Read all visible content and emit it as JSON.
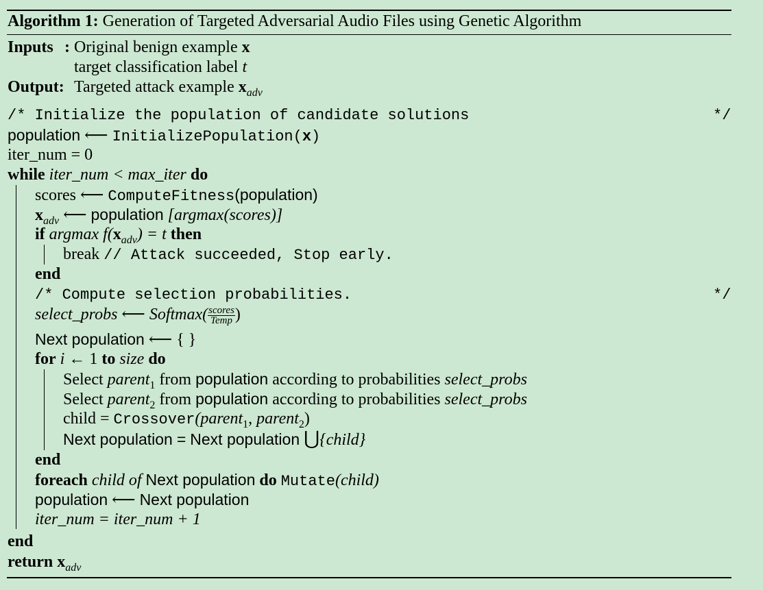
{
  "title": {
    "label": "Algorithm 1:",
    "text": "Generation of Targeted Adversarial Audio Files using Genetic Algorithm"
  },
  "io": {
    "inputs_label": "Inputs",
    "input1": "Original benign example",
    "input1_var": "x",
    "input2": "target classification label",
    "input2_var": "t",
    "output_label": "Output",
    "output1": "Targeted attack example",
    "output1_var": "x",
    "output1_sub": "adv"
  },
  "code": {
    "c1_open": "/* Initialize the population of candidate solutions",
    "c1_close": "*/",
    "population": "population",
    "arrow": "⟵",
    "init_func": "InitializePopulation(",
    "x": "x",
    "close_paren": ")",
    "iter_init": "iter_num = 0",
    "while_kw": "while",
    "while_cond": "iter_num < max_iter",
    "do_kw": "do",
    "scores": "scores",
    "fitness_func": "ComputeFitness",
    "paren_pop": "(population)",
    "xadv_sub": "adv",
    "argmax_expr": "[argmax(scores)]",
    "if_kw": "if",
    "if_cond": "argmax f(",
    "if_eq": ") = t",
    "then_kw": "then",
    "break_kw": "break",
    "break_comment": "// Attack succeeded, Stop early.",
    "end_kw": "end",
    "c2_open": "/* Compute selection probabilities.",
    "c2_close": "*/",
    "select_probs": "select_probs",
    "softmax": "Softmax(",
    "frac_num": "scores",
    "frac_den": "Temp",
    "next_pop": "Next population",
    "empty_set": "{ }",
    "for_kw": "for",
    "for_var": "i",
    "left_arrow": "←",
    "one": "1",
    "to_kw": "to",
    "size": "size",
    "select": "Select",
    "parent": "parent",
    "sub1": "1",
    "sub2": "2",
    "from": "from",
    "according": "according to probabilities",
    "child_eq": "child =",
    "crossover": "Crossover",
    "cross_args_a": "(parent",
    "comma": ",",
    "cross_args_b": "parent",
    "union_eq": "=",
    "union": "⋃",
    "child_set": "{child}",
    "foreach_kw": "foreach",
    "child_of": "child of",
    "mutate": "Mutate",
    "mutate_args": "(child)",
    "iter_update": "iter_num = iter_num + 1",
    "return_kw": "return"
  }
}
